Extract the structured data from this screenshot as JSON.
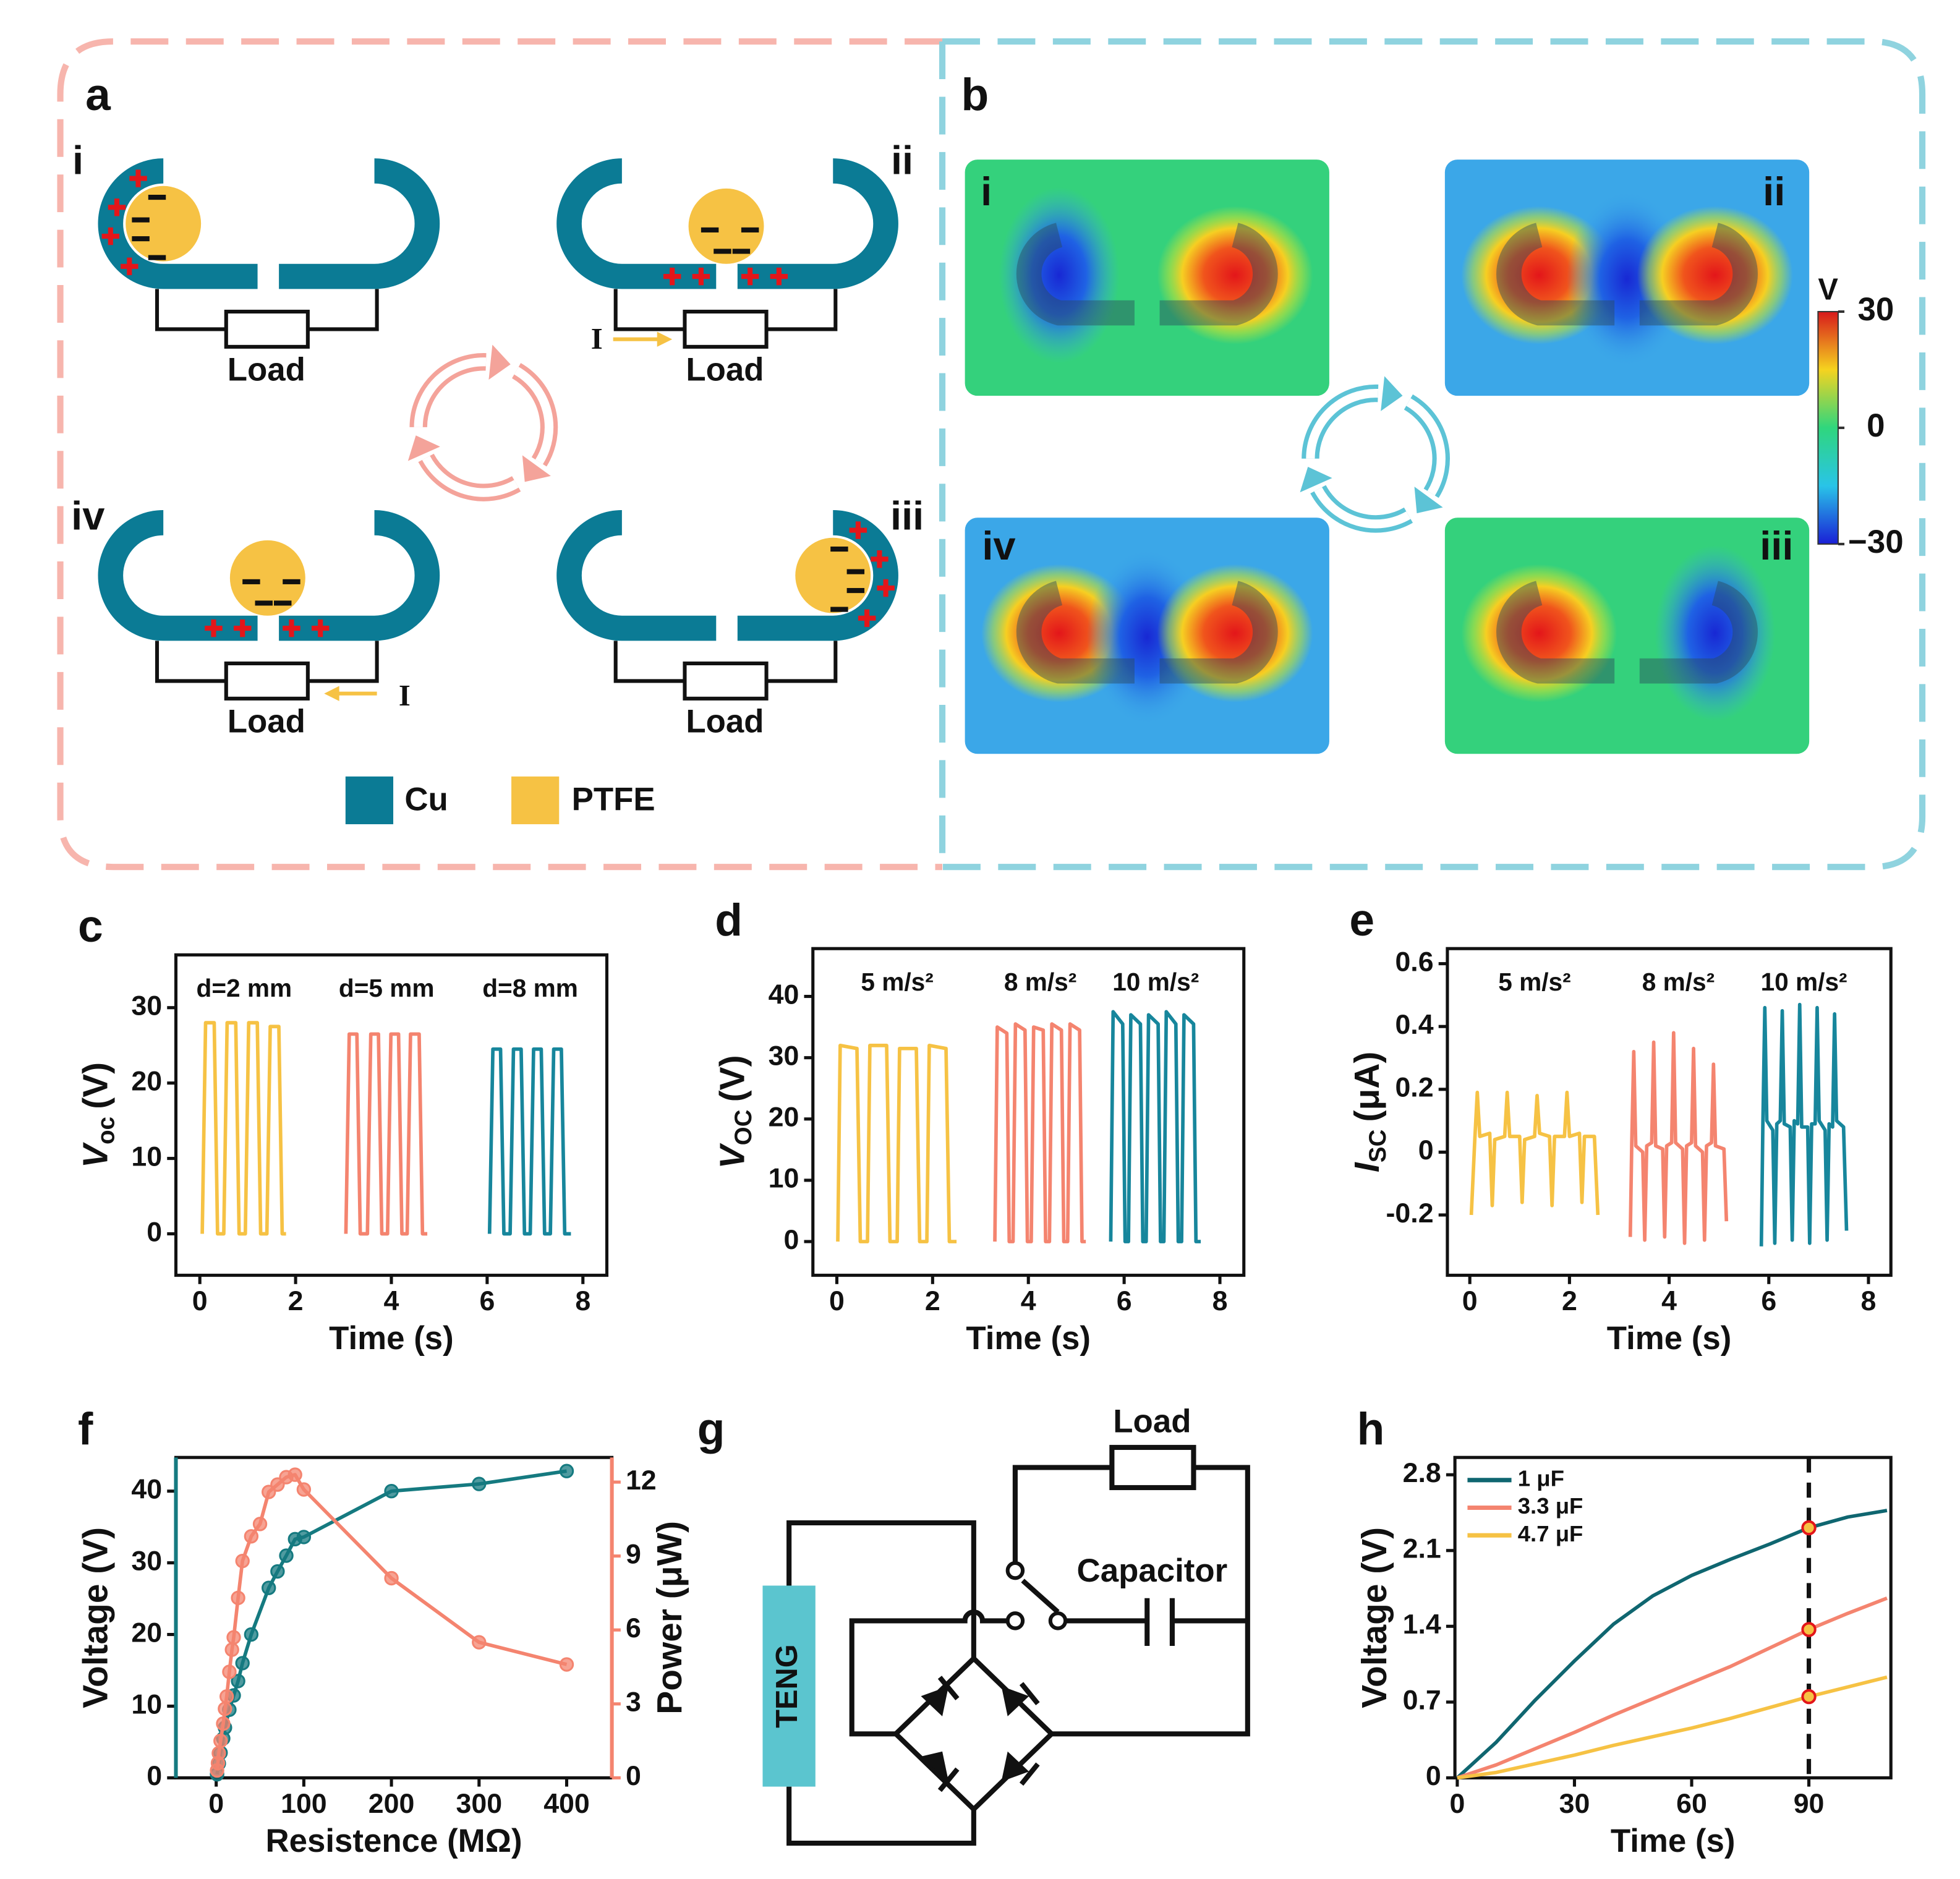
{
  "diagram_a": {
    "panel": "a",
    "states": [
      {
        "label": "i",
        "load": "Load"
      },
      {
        "label": "ii",
        "load": "Load",
        "current": "I"
      },
      {
        "label": "iv",
        "load": "Load",
        "current": "I"
      },
      {
        "label": "iii",
        "load": "Load"
      }
    ],
    "legend": [
      "Cu",
      "PTFE"
    ]
  },
  "diagram_b": {
    "panel": "b",
    "states": [
      "i",
      "ii",
      "iv",
      "iii"
    ],
    "colorbar": {
      "label": "V",
      "lim": [
        -30,
        30
      ],
      "ticks": [
        30,
        0,
        {
          "value": -30,
          "label": "−30"
        }
      ]
    }
  },
  "diagram_g": {
    "panel": "g",
    "load": "Load",
    "capacitor": "Capacitor",
    "source": "TENG"
  },
  "chart_data": [
    {
      "panel": "c",
      "type": "line",
      "xlabel": "Time (s)",
      "ylabel": {
        "symbol": "V",
        "subscript": "oc",
        "unit": "(V)"
      },
      "xlim": [
        -0.5,
        8.5
      ],
      "ylim": [
        -5.5,
        37
      ],
      "xticks": [
        0,
        2,
        4,
        6,
        8
      ],
      "yticks": [
        0,
        10,
        20,
        30
      ],
      "legend": "above",
      "series": [
        {
          "name": "d=2 mm",
          "color": "#f6c244",
          "x": [
            0.05,
            0.12,
            0.3,
            0.37,
            0.5,
            0.57,
            0.75,
            0.82,
            0.95,
            1.02,
            1.2,
            1.27,
            1.4,
            1.47,
            1.65,
            1.72,
            1.8
          ],
          "values": [
            0,
            28,
            28,
            0,
            0,
            28,
            28,
            0,
            0,
            28,
            28,
            0,
            0,
            27.5,
            27.5,
            0,
            0
          ]
        },
        {
          "name": "d=5 mm",
          "color": "#f4846f",
          "x": [
            3.05,
            3.12,
            3.28,
            3.35,
            3.5,
            3.57,
            3.73,
            3.8,
            3.92,
            3.99,
            4.15,
            4.22,
            4.33,
            4.4,
            4.58,
            4.65,
            4.75
          ],
          "values": [
            0,
            26.5,
            26.5,
            0,
            0,
            26.5,
            26.5,
            0,
            0,
            26.5,
            26.5,
            0,
            0,
            26.5,
            26.5,
            0,
            0
          ]
        },
        {
          "name": "d=8 mm",
          "color": "#17869c",
          "x": [
            6.05,
            6.12,
            6.28,
            6.35,
            6.48,
            6.55,
            6.71,
            6.78,
            6.9,
            6.97,
            7.13,
            7.2,
            7.32,
            7.39,
            7.55,
            7.62,
            7.75
          ],
          "values": [
            0,
            24.5,
            24.5,
            0,
            0,
            24.5,
            24.5,
            0,
            0,
            24.5,
            24.5,
            0,
            0,
            24.5,
            24.5,
            0,
            0
          ]
        }
      ]
    },
    {
      "panel": "d",
      "type": "line",
      "xlabel": "Time (s)",
      "ylabel": {
        "symbol": "V",
        "subscript": "OC",
        "unit": "(V)"
      },
      "xlim": [
        -0.5,
        8.5
      ],
      "ylim": [
        -5.5,
        47.8
      ],
      "xticks": [
        0,
        2,
        4,
        6,
        8
      ],
      "yticks": [
        0,
        10,
        20,
        30,
        40
      ],
      "legend": "above",
      "series": [
        {
          "name": "5 m/s²",
          "color": "#f6c244",
          "x": [
            0.02,
            0.07,
            0.42,
            0.49,
            0.64,
            0.69,
            1.04,
            1.11,
            1.26,
            1.31,
            1.66,
            1.73,
            1.88,
            1.93,
            2.28,
            2.35,
            2.5
          ],
          "values": [
            0,
            32,
            31.5,
            0,
            0,
            32,
            32,
            0,
            0,
            31.5,
            31.5,
            0,
            0,
            32,
            31.5,
            0,
            0
          ]
        },
        {
          "name": "8 m/s²",
          "color": "#f4846f",
          "x": [
            3.3,
            3.35,
            3.55,
            3.6,
            3.68,
            3.73,
            3.93,
            3.98,
            4.06,
            4.11,
            4.31,
            4.36,
            4.44,
            4.49,
            4.69,
            4.74,
            4.82,
            4.87,
            5.07,
            5.12,
            5.2
          ],
          "values": [
            0,
            35,
            34,
            0,
            0,
            35.5,
            34.5,
            0,
            0,
            35,
            34.5,
            0,
            0,
            35.5,
            34.5,
            0,
            0,
            35.5,
            34.5,
            0,
            0
          ]
        },
        {
          "name": "10 m/s²",
          "color": "#17869c",
          "x": [
            5.72,
            5.77,
            5.97,
            6.02,
            6.09,
            6.14,
            6.34,
            6.39,
            6.46,
            6.51,
            6.71,
            6.76,
            6.83,
            6.88,
            7.08,
            7.13,
            7.2,
            7.25,
            7.45,
            7.5,
            7.6
          ],
          "values": [
            0,
            37.5,
            35.5,
            0,
            0,
            37,
            35.5,
            0,
            0,
            37,
            35.5,
            0,
            0,
            37.5,
            35.5,
            0,
            0,
            37,
            35.5,
            0,
            0
          ]
        }
      ]
    },
    {
      "panel": "e",
      "type": "line",
      "xlabel": "Time (s)",
      "ylabel": {
        "symbol": "I",
        "subscript": "SC",
        "unit": "(μA)"
      },
      "xlim": [
        -0.45,
        8.45
      ],
      "ylim": [
        -0.392,
        0.648
      ],
      "xticks": [
        0,
        2,
        4,
        6,
        8
      ],
      "yticks": [
        -0.2,
        0,
        0.2,
        0.4,
        0.6
      ],
      "legend": "above",
      "series": [
        {
          "name": "5 m/s²",
          "color": "#f6c244",
          "x": [
            0.03,
            0.1,
            0.15,
            0.2,
            0.4,
            0.45,
            0.5,
            0.7,
            0.75,
            0.8,
            1.0,
            1.05,
            1.1,
            1.3,
            1.35,
            1.4,
            1.6,
            1.65,
            1.7,
            1.9,
            1.95,
            2.0,
            2.2,
            2.25,
            2.3,
            2.5,
            2.57
          ],
          "values": [
            -0.2,
            0.04,
            0.19,
            0.05,
            0.06,
            -0.17,
            0.04,
            0.05,
            0.19,
            0.05,
            0.05,
            -0.16,
            0.04,
            0.05,
            0.18,
            0.06,
            0.05,
            -0.17,
            0.05,
            0.05,
            0.19,
            0.05,
            0.06,
            -0.16,
            0.05,
            0.05,
            -0.2
          ]
        },
        {
          "name": "8 m/s²",
          "color": "#f4846f",
          "x": [
            3.22,
            3.25,
            3.29,
            3.33,
            3.47,
            3.51,
            3.55,
            3.65,
            3.69,
            3.73,
            3.87,
            3.91,
            3.95,
            4.05,
            4.09,
            4.13,
            4.27,
            4.31,
            4.35,
            4.45,
            4.49,
            4.53,
            4.67,
            4.71,
            4.75,
            4.85,
            4.89,
            4.93,
            5.1,
            5.15
          ],
          "values": [
            -0.27,
            0.03,
            0.32,
            0.02,
            0.0,
            -0.28,
            0.02,
            0.03,
            0.35,
            0.02,
            0.01,
            -0.27,
            0.02,
            0.03,
            0.38,
            0.03,
            0.01,
            -0.29,
            0.02,
            0.03,
            0.33,
            0.02,
            0.0,
            -0.28,
            0.02,
            0.03,
            0.28,
            0.02,
            0.01,
            -0.22
          ]
        },
        {
          "name": "10 m/s²",
          "color": "#17869c",
          "x": [
            5.85,
            5.88,
            5.92,
            5.96,
            6.08,
            6.12,
            6.16,
            6.23,
            6.27,
            6.31,
            6.43,
            6.47,
            6.51,
            6.58,
            6.62,
            6.66,
            6.78,
            6.82,
            6.86,
            6.93,
            6.97,
            7.01,
            7.13,
            7.17,
            7.21,
            7.28,
            7.32,
            7.36,
            7.5,
            7.56
          ],
          "values": [
            -0.3,
            0.08,
            0.46,
            0.1,
            0.07,
            -0.29,
            0.09,
            0.1,
            0.45,
            0.09,
            0.08,
            -0.28,
            0.1,
            0.09,
            0.47,
            0.08,
            0.08,
            -0.29,
            0.09,
            0.09,
            0.46,
            0.1,
            0.07,
            -0.28,
            0.09,
            0.08,
            0.44,
            0.1,
            0.08,
            -0.25
          ]
        }
      ]
    },
    {
      "panel": "f",
      "type": "line",
      "xlabel": "Resistence (MΩ)",
      "ylabel": "Voltage (V)",
      "y2label": "Power (μW)",
      "xlim": [
        -46,
        451.6
      ],
      "ylim": [
        0,
        44.7
      ],
      "y2lim": [
        0,
        13.0
      ],
      "xticks": [
        0,
        100,
        200,
        300,
        400
      ],
      "yticks": [
        0,
        10,
        20,
        30,
        40
      ],
      "y2ticks": [
        0,
        3,
        6,
        9,
        12
      ],
      "series": [
        {
          "color": "#157a80",
          "marker": "circle",
          "x": [
            1,
            3,
            5,
            8,
            10,
            15,
            20,
            25,
            30,
            40,
            60,
            70,
            80,
            90,
            100,
            200,
            300,
            400
          ],
          "values": [
            0.5,
            2,
            3.5,
            5.5,
            7,
            9.5,
            11.5,
            13.5,
            16,
            20,
            26.5,
            28.8,
            31,
            33.3,
            33.6,
            40,
            41,
            42.8
          ]
        },
        {
          "color": "#f4846f",
          "marker": "circle",
          "axis": "y2",
          "x": [
            1,
            2,
            3,
            5,
            8,
            10,
            12,
            15,
            18,
            20,
            25,
            30,
            40,
            50,
            60,
            70,
            80,
            90,
            100,
            200,
            300,
            400
          ],
          "values": [
            0.3,
            0.6,
            1,
            1.5,
            2.2,
            2.8,
            3.3,
            4.3,
            5.2,
            5.7,
            7.3,
            8.8,
            9.8,
            10.3,
            11.6,
            11.9,
            12.2,
            12.3,
            11.7,
            8.1,
            5.5,
            4.6
          ]
        }
      ]
    },
    {
      "panel": "h",
      "type": "line",
      "xlabel": "Time (s)",
      "ylabel": "Voltage (V)",
      "xlim": [
        -0.6,
        111
      ],
      "ylim": [
        0,
        2.96
      ],
      "xticks": [
        0,
        30,
        60,
        90
      ],
      "yticks": [
        0,
        0.7,
        1.4,
        2.1,
        2.8
      ],
      "legend": "top-left",
      "vline": {
        "x": 90,
        "style": "dashed"
      },
      "series": [
        {
          "name": "1 μF",
          "color": "#0f6670",
          "vline_value": 2.31,
          "x": [
            0,
            10,
            20,
            30,
            40,
            50,
            60,
            70,
            80,
            90,
            100,
            110
          ],
          "values": [
            0,
            0.33,
            0.72,
            1.08,
            1.42,
            1.68,
            1.87,
            2.02,
            2.16,
            2.31,
            2.41,
            2.47
          ]
        },
        {
          "name": "3.3 μF",
          "color": "#f4846f",
          "vline_value": 1.37,
          "x": [
            0,
            10,
            20,
            30,
            40,
            50,
            60,
            70,
            80,
            90,
            100,
            110
          ],
          "values": [
            0,
            0.12,
            0.27,
            0.42,
            0.58,
            0.73,
            0.88,
            1.03,
            1.2,
            1.37,
            1.52,
            1.66
          ]
        },
        {
          "name": "4.7 μF",
          "color": "#f6c244",
          "vline_value": 0.75,
          "x": [
            0,
            10,
            20,
            30,
            40,
            50,
            60,
            70,
            80,
            90,
            100,
            110
          ],
          "values": [
            0,
            0.05,
            0.13,
            0.21,
            0.3,
            0.38,
            0.46,
            0.55,
            0.65,
            0.75,
            0.84,
            0.93
          ]
        }
      ]
    }
  ]
}
